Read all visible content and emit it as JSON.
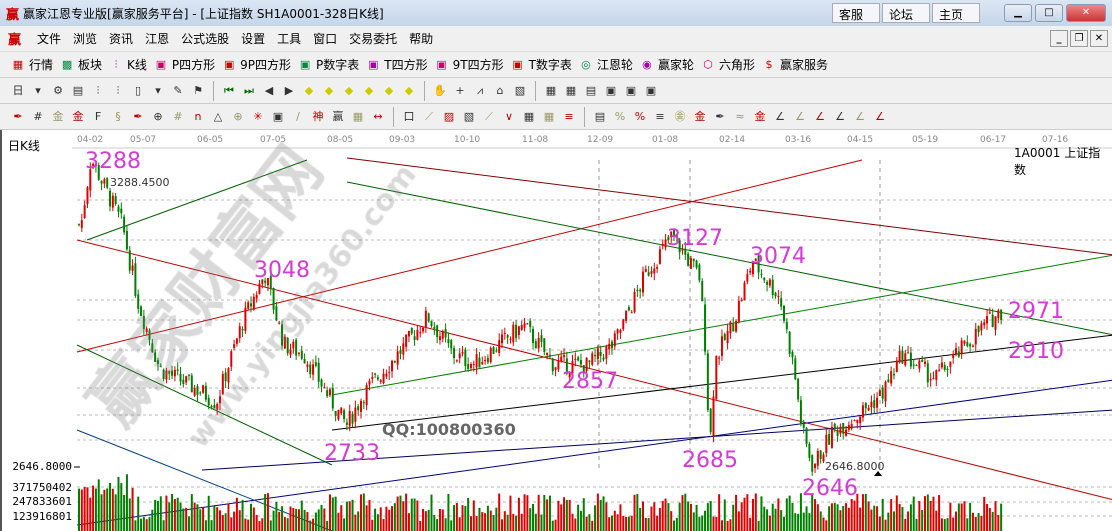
{
  "window": {
    "title": "赢家江恩专业版[赢家服务平台] - [上证指数  SH1A0001-328日K线]",
    "logo": "赢",
    "links": [
      "客服",
      "论坛",
      "主页"
    ]
  },
  "menu": [
    "文件",
    "浏览",
    "资讯",
    "江恩",
    "公式选股",
    "设置",
    "工具",
    "窗口",
    "交易委托",
    "帮助"
  ],
  "toolbar1": [
    {
      "icon": "table-icon",
      "label": "行情"
    },
    {
      "icon": "blocks-icon",
      "label": "板块"
    },
    {
      "icon": "candlestick-icon",
      "label": "K线"
    },
    {
      "icon": "ps-icon",
      "label": "P四方形"
    },
    {
      "icon": "p9-icon",
      "label": "9P四方形"
    },
    {
      "icon": "pn-icon",
      "label": "P数字表"
    },
    {
      "icon": "ts-icon",
      "label": "T四方形"
    },
    {
      "icon": "t9-icon",
      "label": "9T四方形"
    },
    {
      "icon": "tn-icon",
      "label": "T数字表"
    },
    {
      "icon": "gann-wheel-icon",
      "label": "江恩轮"
    },
    {
      "icon": "big-wheel-icon",
      "label": "赢家轮"
    },
    {
      "icon": "hexagon-icon",
      "label": "六角形"
    },
    {
      "icon": "dollar-icon",
      "label": "赢家服务"
    }
  ],
  "toolbar2": [
    "day-period-icon",
    "dropdown-icon",
    "map-icon",
    "note-icon",
    "chart3-icon",
    "chart9-icon",
    "bar-type-icon",
    "dropdown-icon",
    "refresh-icon",
    "flag-icon",
    "first-icon",
    "last-icon",
    "left-icon",
    "right-icon",
    "diamond-left-icon",
    "diamond-right-icon",
    "diamond-expand-icon",
    "diamond-shrink-icon",
    "diamond-4way-icon",
    "diamond-vertical-icon",
    "hand-icon",
    "crosshair-icon",
    "trend-icon",
    "gann-icon",
    "chart-icon",
    "calendar-icon",
    "calculator-icon",
    "report-icon",
    "save-icon",
    "network-icon",
    "print-icon"
  ],
  "toolbar3": [
    "pen-icon",
    "grid-icon",
    "gold-grid-icon",
    "gold-grid2-icon",
    "f-grid-icon",
    "spiral-icon",
    "pen2-icon",
    "circle-grid-icon",
    "grid3-icon",
    "n2-icon",
    "triangle-icon",
    "target-icon",
    "star-icon",
    "square-icon",
    "cycle-icon",
    "god-icon",
    "win-icon",
    "ruler-icon",
    "measure-icon",
    "box-icon",
    "fan-icon",
    "fan2-icon",
    "fan3-icon",
    "angle-icon",
    "zigzag-icon",
    "grid4-icon",
    "grid5-icon",
    "lines-icon",
    "table2-icon",
    "percent-line-icon",
    "percent-icon",
    "percent2-icon",
    "gold-circle-icon",
    "gold-line-icon",
    "pen3-icon",
    "wave-icon",
    "gold2-icon",
    "angle2-icon",
    "f-angle-icon",
    "gold-angle-icon",
    "shen-angle-icon",
    "ying-angle-icon",
    "four-angle-icon"
  ],
  "chart": {
    "period_label": "日K线",
    "code_label": "1A0001 上证指数",
    "watermark": "赢家财富网",
    "watermark_url": "www.yingjia360.com",
    "qq": "QQ:100800360",
    "high_tag": "3288.4500",
    "low_tag": "2646.8000",
    "axis_low": "2646.8000",
    "volume_ticks": [
      "371750402",
      "247833601",
      "123916801"
    ],
    "dates": [
      "04-02",
      "05-07",
      "06-05",
      "07-05",
      "08-05",
      "09-03",
      "10-10",
      "11-08",
      "12-09",
      "01-08",
      "02-14",
      "03-16",
      "04-15",
      "05-19",
      "06-17",
      "07-16"
    ],
    "colors": {
      "up": "#e00000",
      "down": "#008000",
      "annotation": "#d63ad6"
    }
  },
  "chart_data": {
    "type": "candlestick",
    "title": "上证指数 SH1A0001 日K线",
    "bars": 328,
    "price_path": [
      [
        "03-28",
        3150
      ],
      [
        "04-04",
        3288
      ],
      [
        "04-25",
        3150
      ],
      [
        "05-05",
        2990
      ],
      [
        "05-15",
        2850
      ],
      [
        "06-03",
        2800
      ],
      [
        "06-09",
        2780
      ],
      [
        "06-22",
        2950
      ],
      [
        "07-02",
        3048
      ],
      [
        "07-11",
        2900
      ],
      [
        "07-20",
        2880
      ],
      [
        "08-05",
        2760
      ],
      [
        "08-09",
        2733
      ],
      [
        "08-17",
        2800
      ],
      [
        "09-04",
        2890
      ],
      [
        "09-19",
        2960
      ],
      [
        "10-03",
        2880
      ],
      [
        "10-14",
        2860
      ],
      [
        "11-04",
        2940
      ],
      [
        "11-18",
        2860
      ],
      [
        "12-04",
        2857
      ],
      [
        "12-16",
        2900
      ],
      [
        "12-31",
        3050
      ],
      [
        "01-13",
        3127
      ],
      [
        "01-28",
        3040
      ],
      [
        "01-31",
        2900
      ],
      [
        "02-03",
        2685
      ],
      [
        "02-06",
        2870
      ],
      [
        "02-16",
        2950
      ],
      [
        "02-25",
        3074
      ],
      [
        "03-08",
        3000
      ],
      [
        "03-15",
        2850
      ],
      [
        "03-19",
        2720
      ],
      [
        "03-24",
        2646
      ],
      [
        "04-03",
        2720
      ],
      [
        "04-17",
        2760
      ],
      [
        "04-28",
        2800
      ],
      [
        "05-08",
        2880
      ],
      [
        "05-24",
        2830
      ],
      [
        "06-03",
        2880
      ],
      [
        "06-14",
        2940
      ],
      [
        "06-22",
        2971
      ]
    ],
    "annotations": [
      {
        "date": "04-04",
        "text": "3288"
      },
      {
        "date": "07-02",
        "text": "3048"
      },
      {
        "date": "08-09",
        "text": "2733"
      },
      {
        "date": "12-04",
        "text": "2857"
      },
      {
        "date": "01-13",
        "text": "3127"
      },
      {
        "date": "02-25",
        "text": "3074"
      },
      {
        "date": "02-03",
        "text": "2685"
      },
      {
        "date": "03-24",
        "text": "2646"
      },
      {
        "date": "06-22",
        "text": "2971"
      },
      {
        "date": "06-22",
        "text": "2910"
      }
    ]
  }
}
